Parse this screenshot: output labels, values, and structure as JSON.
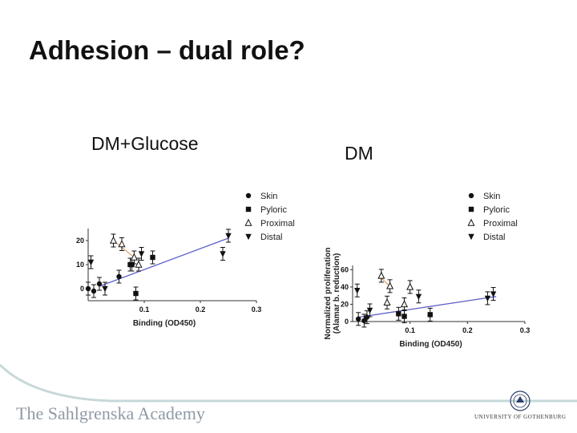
{
  "slide": {
    "title": "Adhesion – dual role?",
    "left_label": "DM+Glucose",
    "right_label": "DM",
    "footer_left": "The Sahlgrenska Academy",
    "footer_right": "UNIVERSITY OF GOTHENBURG"
  },
  "colors": {
    "fit_line": "#5a5fc8",
    "orange_line": "#e6a56a",
    "marker": "#111111",
    "footer_wave": "#c7d8d8"
  },
  "chart_data": [
    {
      "type": "scatter",
      "panel": "DM+Glucose",
      "title": "",
      "xlabel": "Binding (OD450)",
      "ylabel": "",
      "xlim": [
        0,
        0.3
      ],
      "ylim": [
        -5,
        25
      ],
      "x_ticks": [
        "0.1",
        "0.2",
        "0.3"
      ],
      "y_ticks": [
        "0",
        "10",
        "20"
      ],
      "legend": [
        "Skin",
        "Pyloric",
        "Proximal",
        "Distal"
      ],
      "series": [
        {
          "name": "Skin",
          "marker": "circle",
          "points": [
            [
              0.0,
              0
            ],
            [
              0.01,
              -1
            ],
            [
              0.02,
              2
            ],
            [
              0.055,
              5
            ]
          ]
        },
        {
          "name": "Pyloric",
          "marker": "square",
          "points": [
            [
              0.075,
              10
            ],
            [
              0.078,
              10
            ],
            [
              0.085,
              -2
            ],
            [
              0.115,
              13
            ]
          ]
        },
        {
          "name": "Proximal",
          "marker": "triangle-up",
          "points": [
            [
              0.045,
              20
            ],
            [
              0.06,
              18.5
            ],
            [
              0.082,
              13
            ],
            [
              0.09,
              10
            ]
          ]
        },
        {
          "name": "Distal",
          "marker": "triangle-down",
          "points": [
            [
              0.005,
              11
            ],
            [
              0.03,
              0
            ],
            [
              0.095,
              14.5
            ],
            [
              0.24,
              14.5
            ],
            [
              0.25,
              22
            ]
          ]
        }
      ],
      "fit_line": {
        "x": [
          0.02,
          0.25
        ],
        "y": [
          1,
          21
        ]
      },
      "orange_line": {
        "x": [
          0.045,
          0.082
        ],
        "y": [
          20,
          13
        ]
      }
    },
    {
      "type": "scatter",
      "panel": "DM",
      "title": "",
      "xlabel": "Binding (OD450)",
      "ylabel": "Normalized proliferation (Alamar b. reduction)",
      "xlim": [
        0,
        0.3
      ],
      "ylim": [
        0,
        65
      ],
      "x_ticks": [
        "0.1",
        "0.2",
        "0.3"
      ],
      "y_ticks": [
        "0",
        "20",
        "40",
        "60"
      ],
      "legend": [
        "Skin",
        "Pyloric",
        "Proximal",
        "Distal"
      ],
      "series": [
        {
          "name": "Skin",
          "marker": "circle",
          "points": [
            [
              0.01,
              3
            ],
            [
              0.02,
              1
            ],
            [
              0.025,
              5
            ]
          ]
        },
        {
          "name": "Pyloric",
          "marker": "square",
          "points": [
            [
              0.08,
              9
            ],
            [
              0.09,
              6
            ],
            [
              0.135,
              8
            ]
          ]
        },
        {
          "name": "Proximal",
          "marker": "triangle-up",
          "points": [
            [
              0.05,
              53
            ],
            [
              0.065,
              41
            ],
            [
              0.06,
              22
            ],
            [
              0.09,
              20
            ],
            [
              0.1,
              40
            ]
          ]
        },
        {
          "name": "Distal",
          "marker": "triangle-down",
          "points": [
            [
              0.008,
              36
            ],
            [
              0.03,
              13
            ],
            [
              0.115,
              29
            ],
            [
              0.235,
              27
            ],
            [
              0.245,
              32
            ]
          ]
        }
      ],
      "fit_line": {
        "x": [
          0.01,
          0.25
        ],
        "y": [
          5,
          29
        ]
      },
      "orange_line": {
        "x": [
          0.05,
          0.065
        ],
        "y": [
          50,
          41
        ]
      }
    }
  ]
}
